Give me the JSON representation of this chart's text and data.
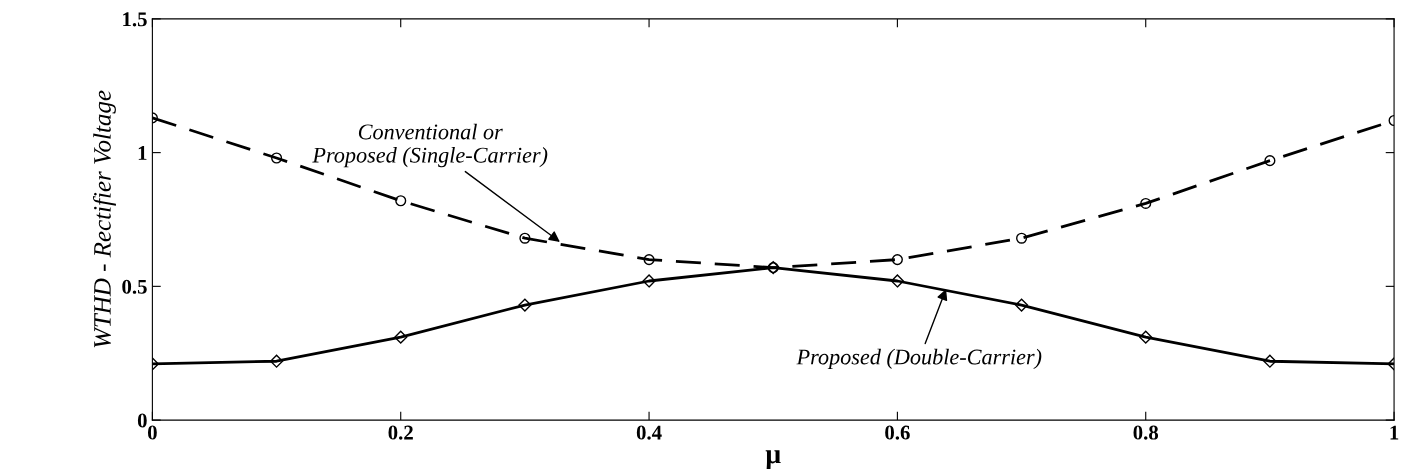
{
  "chart_data": {
    "type": "line",
    "xlabel": "μ",
    "ylabel": "WTHD - Rectifier Voltage",
    "x": [
      0,
      0.1,
      0.2,
      0.3,
      0.4,
      0.5,
      0.6,
      0.7,
      0.8,
      0.9,
      1
    ],
    "series": [
      {
        "color": "#000000",
        "marker": "circle",
        "line_style": "dashed",
        "values": [
          1.13,
          0.98,
          0.82,
          0.68,
          0.6,
          0.57,
          0.6,
          0.68,
          0.81,
          0.97,
          1.12
        ]
      },
      {
        "color": "#000000",
        "marker": "diamond",
        "line_style": "solid",
        "values": [
          0.21,
          0.22,
          0.31,
          0.43,
          0.52,
          0.57,
          0.52,
          0.43,
          0.31,
          0.22,
          0.21
        ]
      }
    ],
    "xlim": [
      0,
      1
    ],
    "ylim": [
      0,
      1.5
    ],
    "xticks": [
      0,
      0.2,
      0.4,
      0.6,
      0.8,
      1
    ],
    "yticks": [
      0,
      0.5,
      1,
      1.5
    ],
    "grid": false,
    "annotations": [
      {
        "text": "Conventional or\nProposed (Single-Carrier)",
        "x": 0.33,
        "y": 0.66
      },
      {
        "text": "Proposed (Double-Carrier)",
        "x": 0.64,
        "y": 0.5
      }
    ]
  }
}
